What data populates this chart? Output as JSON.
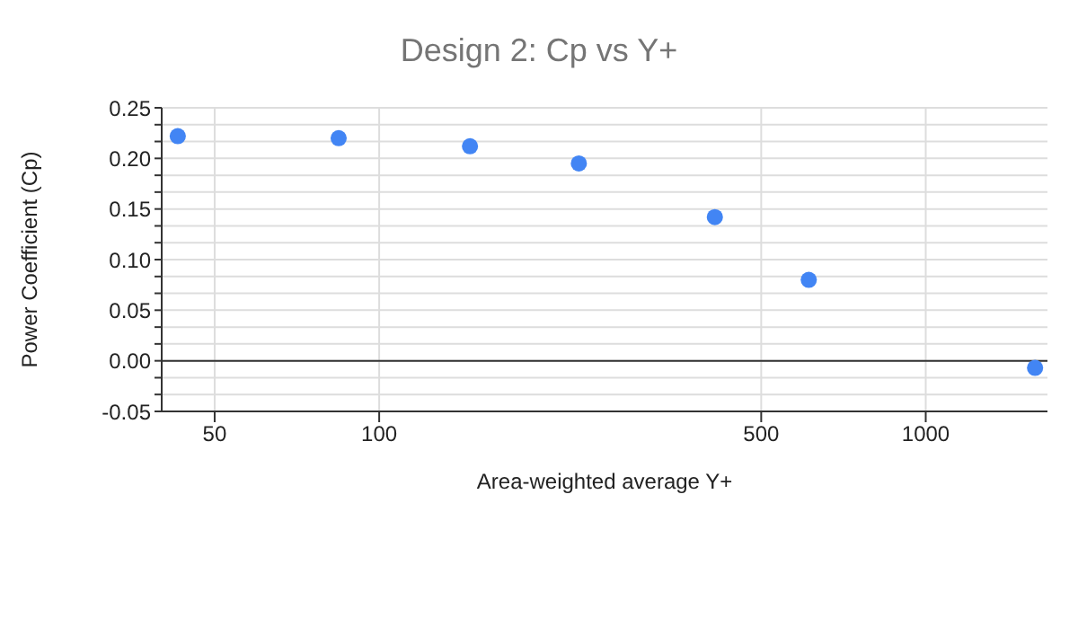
{
  "chart_data": {
    "type": "scatter",
    "title": "Design 2: Cp vs Y+",
    "xlabel": "Area-weighted average Y+",
    "ylabel": "Power Coefficient (Cp)",
    "x": [
      42.8,
      84.3,
      146.6,
      231.9,
      411.3,
      610.9,
      1585
    ],
    "series": [
      {
        "color": "#4285f4",
        "values": [
          0.222,
          0.22,
          0.212,
          0.195,
          0.142,
          0.08,
          -0.007
        ]
      }
    ],
    "log": "x",
    "xlim": [
      40,
      1670
    ],
    "xticks": [
      50,
      100,
      500,
      1000
    ],
    "ylim": [
      -0.05,
      0.25
    ],
    "yticks": [
      {
        "value": -0.05,
        "label": "-0.05"
      },
      {
        "value": -0.0333,
        "label": null
      },
      {
        "value": -0.0167,
        "label": null
      },
      {
        "value": 0,
        "label": "0.00"
      },
      {
        "value": 0.0167,
        "label": null
      },
      {
        "value": 0.0333,
        "label": null
      },
      {
        "value": 0.05,
        "label": "0.05"
      },
      {
        "value": 0.0667,
        "label": null
      },
      {
        "value": 0.0833,
        "label": null
      },
      {
        "value": 0.1,
        "label": "0.10"
      },
      {
        "value": 0.1167,
        "label": null
      },
      {
        "value": 0.1333,
        "label": null
      },
      {
        "value": 0.15,
        "label": "0.15"
      },
      {
        "value": 0.1667,
        "label": null
      },
      {
        "value": 0.1833,
        "label": null
      },
      {
        "value": 0.2,
        "label": "0.20"
      },
      {
        "value": 0.2167,
        "label": null
      },
      {
        "value": 0.2333,
        "label": null
      },
      {
        "value": 0.25,
        "label": "0.25"
      }
    ],
    "grid": true,
    "marker": "circle",
    "legend": false,
    "ref_lines": [
      {
        "axis": "y",
        "value": 0,
        "color": "#333333"
      }
    ]
  }
}
